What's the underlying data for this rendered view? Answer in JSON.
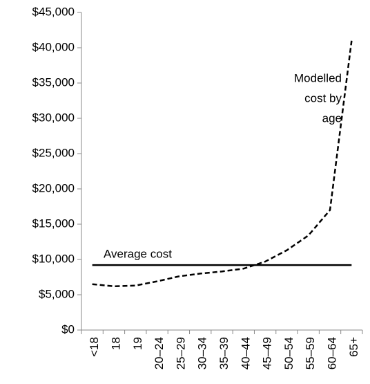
{
  "chart_data": {
    "type": "line",
    "categories": [
      "<18",
      "18",
      "19",
      "20–24",
      "25–29",
      "30–34",
      "35–39",
      "40–44",
      "45–49",
      "50–54",
      "55–59",
      "60–64",
      "65+"
    ],
    "series": [
      {
        "name": "Modelled cost by age",
        "color": "#000000",
        "dash": true,
        "values": [
          6500,
          6200,
          6300,
          6900,
          7600,
          8000,
          8300,
          8700,
          9700,
          11300,
          13400,
          17000,
          41000
        ]
      },
      {
        "name": "Average cost",
        "color": "#000000",
        "dash": false,
        "values": [
          9200,
          9200,
          9200,
          9200,
          9200,
          9200,
          9200,
          9200,
          9200,
          9200,
          9200,
          9200,
          9200
        ]
      }
    ],
    "annotation_lines": [
      "Modelled",
      "cost by",
      "age"
    ],
    "ylim": [
      0,
      45000
    ],
    "yticks": [
      {
        "value": 0,
        "label": "$0"
      },
      {
        "value": 5000,
        "label": "$5,000"
      },
      {
        "value": 10000,
        "label": "$10,000"
      },
      {
        "value": 15000,
        "label": "$15,000"
      },
      {
        "value": 20000,
        "label": "$20,000"
      },
      {
        "value": 25000,
        "label": "$25,000"
      },
      {
        "value": 30000,
        "label": "$30,000"
      },
      {
        "value": 35000,
        "label": "$35,000"
      },
      {
        "value": 40000,
        "label": "$40,000"
      },
      {
        "value": 45000,
        "label": "$45,000"
      }
    ],
    "grid": false
  }
}
